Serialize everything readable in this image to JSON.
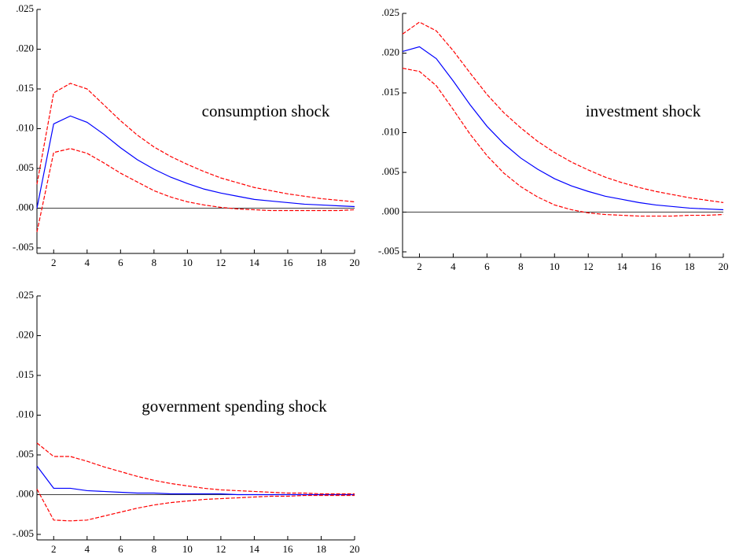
{
  "chart_data": [
    {
      "type": "line",
      "annotation": "consumption shock",
      "x": [
        1,
        2,
        3,
        4,
        5,
        6,
        7,
        8,
        9,
        10,
        11,
        12,
        13,
        14,
        15,
        16,
        17,
        18,
        19,
        20
      ],
      "series": [
        {
          "color": "#0000ff",
          "style": "solid",
          "values": [
            0.0,
            0.0106,
            0.0116,
            0.0108,
            0.0093,
            0.0076,
            0.0061,
            0.0049,
            0.0039,
            0.0031,
            0.0024,
            0.0019,
            0.0015,
            0.0011,
            0.0009,
            0.0007,
            0.0005,
            0.0004,
            0.0003,
            0.0002
          ]
        },
        {
          "color": "#ff0000",
          "style": "dashed",
          "values": [
            0.003,
            0.0145,
            0.0157,
            0.015,
            0.013,
            0.011,
            0.0092,
            0.0077,
            0.0065,
            0.0055,
            0.0046,
            0.0038,
            0.0032,
            0.0026,
            0.0022,
            0.0018,
            0.0015,
            0.0012,
            0.001,
            0.0008
          ]
        },
        {
          "color": "#ff0000",
          "style": "dashed",
          "values": [
            -0.003,
            0.007,
            0.0075,
            0.0069,
            0.0057,
            0.0044,
            0.0033,
            0.0022,
            0.0014,
            0.0008,
            0.0004,
            0.0001,
            -0.0001,
            -0.0002,
            -0.0003,
            -0.0003,
            -0.0003,
            -0.0003,
            -0.0003,
            -0.0002
          ]
        }
      ],
      "xlim": [
        1,
        20
      ],
      "xticks": [
        2,
        4,
        6,
        8,
        10,
        12,
        14,
        16,
        18,
        20
      ],
      "ylim": [
        -0.005,
        0.025
      ],
      "yticks": [
        {
          "value": -0.005,
          "label": "-.005"
        },
        {
          "value": 0,
          "label": ".000"
        },
        {
          "value": 0.005,
          "label": ".005"
        },
        {
          "value": 0.01,
          "label": ".010"
        },
        {
          "value": 0.015,
          "label": ".015"
        },
        {
          "value": 0.02,
          "label": ".020"
        },
        {
          "value": 0.025,
          "label": ".025"
        }
      ]
    },
    {
      "type": "line",
      "annotation": "investment shock",
      "x": [
        1,
        2,
        3,
        4,
        5,
        6,
        7,
        8,
        9,
        10,
        11,
        12,
        13,
        14,
        15,
        16,
        17,
        18,
        19,
        20
      ],
      "series": [
        {
          "color": "#0000ff",
          "style": "solid",
          "values": [
            0.0202,
            0.0208,
            0.0193,
            0.0165,
            0.0135,
            0.0108,
            0.0086,
            0.0068,
            0.0054,
            0.0042,
            0.0033,
            0.0026,
            0.002,
            0.0016,
            0.0012,
            0.0009,
            0.0007,
            0.0005,
            0.0004,
            0.0003
          ]
        },
        {
          "color": "#ff0000",
          "style": "dashed",
          "values": [
            0.0224,
            0.0239,
            0.0228,
            0.0203,
            0.0175,
            0.0148,
            0.0125,
            0.0106,
            0.0089,
            0.0075,
            0.0063,
            0.0053,
            0.0044,
            0.0037,
            0.0031,
            0.0026,
            0.0022,
            0.0018,
            0.0015,
            0.0012
          ]
        },
        {
          "color": "#ff0000",
          "style": "dashed",
          "values": [
            0.0181,
            0.0177,
            0.0159,
            0.0129,
            0.0098,
            0.0071,
            0.0049,
            0.0032,
            0.0019,
            0.0009,
            0.0003,
            -0.0001,
            -0.0003,
            -0.0004,
            -0.0005,
            -0.0005,
            -0.0005,
            -0.0004,
            -0.0004,
            -0.0003
          ]
        }
      ],
      "xlim": [
        1,
        20
      ],
      "xticks": [
        2,
        4,
        6,
        8,
        10,
        12,
        14,
        16,
        18,
        20
      ],
      "ylim": [
        -0.005,
        0.025
      ],
      "yticks": [
        {
          "value": -0.005,
          "label": "-.005"
        },
        {
          "value": 0,
          "label": ".000"
        },
        {
          "value": 0.005,
          "label": ".005"
        },
        {
          "value": 0.01,
          "label": ".010"
        },
        {
          "value": 0.015,
          "label": ".015"
        },
        {
          "value": 0.02,
          "label": ".020"
        },
        {
          "value": 0.025,
          "label": ".025"
        }
      ]
    },
    {
      "type": "line",
      "annotation": "government spending shock",
      "x": [
        1,
        2,
        3,
        4,
        5,
        6,
        7,
        8,
        9,
        10,
        11,
        12,
        13,
        14,
        15,
        16,
        17,
        18,
        19,
        20
      ],
      "series": [
        {
          "color": "#0000ff",
          "style": "solid",
          "values": [
            0.0036,
            0.0008,
            0.0008,
            0.0005,
            0.0004,
            0.0003,
            0.0002,
            0.0002,
            0.0001,
            0.0001,
            0.0001,
            0.0001,
            0,
            0,
            0,
            0,
            0,
            0,
            0,
            0
          ]
        },
        {
          "color": "#ff0000",
          "style": "dashed",
          "values": [
            0.0065,
            0.0048,
            0.0048,
            0.0042,
            0.0035,
            0.0029,
            0.0023,
            0.0018,
            0.0014,
            0.0011,
            0.0008,
            0.0006,
            0.0005,
            0.0004,
            0.0003,
            0.0002,
            0.0002,
            0.0001,
            0.0001,
            0.0001
          ]
        },
        {
          "color": "#ff0000",
          "style": "dashed",
          "values": [
            0.0007,
            -0.0032,
            -0.0033,
            -0.0032,
            -0.0027,
            -0.0022,
            -0.0017,
            -0.0013,
            -0.001,
            -0.0008,
            -0.0006,
            -0.0005,
            -0.0004,
            -0.0003,
            -0.0002,
            -0.0002,
            -0.0001,
            -0.0001,
            -0.0001,
            -0.0001
          ]
        }
      ],
      "xlim": [
        1,
        20
      ],
      "xticks": [
        2,
        4,
        6,
        8,
        10,
        12,
        14,
        16,
        18,
        20
      ],
      "ylim": [
        -0.005,
        0.025
      ],
      "yticks": [
        {
          "value": -0.005,
          "label": "-.005"
        },
        {
          "value": 0,
          "label": ".000"
        },
        {
          "value": 0.005,
          "label": ".005"
        },
        {
          "value": 0.01,
          "label": ".010"
        },
        {
          "value": 0.015,
          "label": ".015"
        },
        {
          "value": 0.02,
          "label": ".020"
        },
        {
          "value": 0.025,
          "label": ".025"
        }
      ]
    }
  ]
}
